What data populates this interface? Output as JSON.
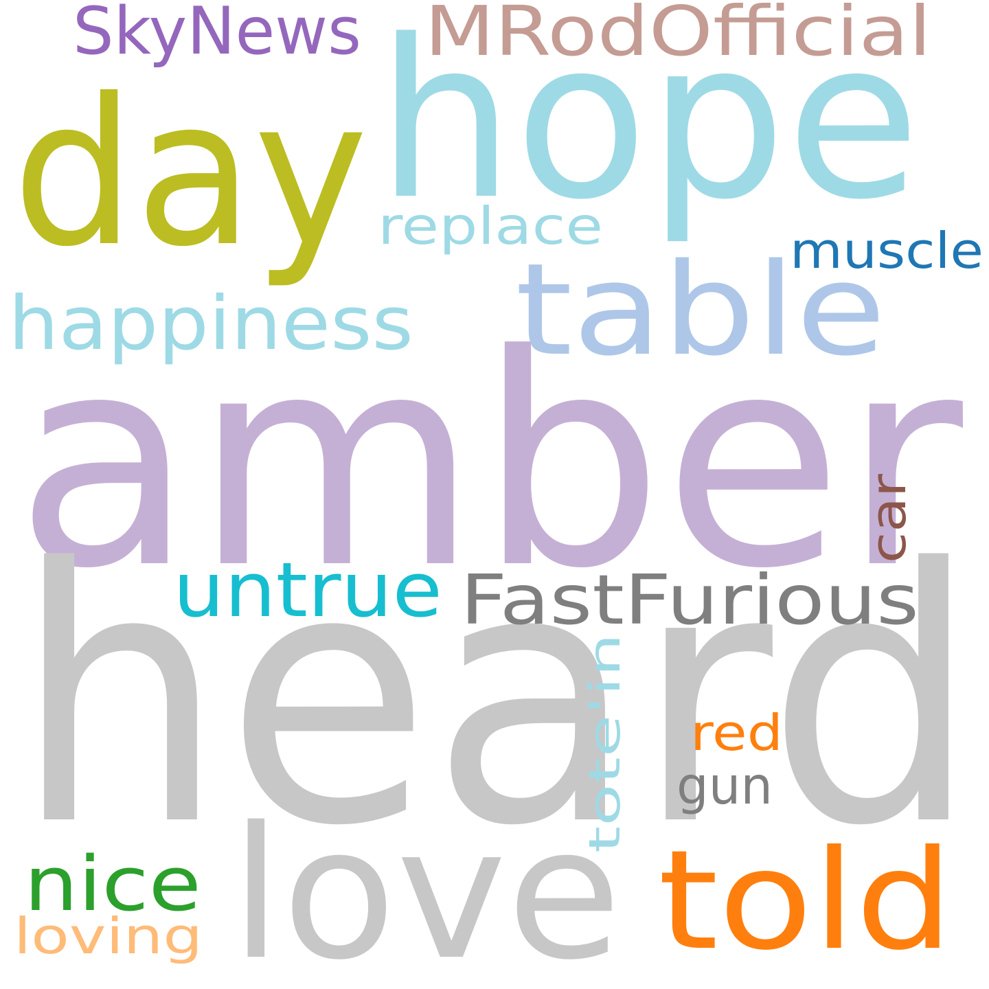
{
  "words": [
    {
      "id": "amber",
      "text": "amber",
      "color": "#c5b0d5"
    },
    {
      "id": "heard",
      "text": "heard",
      "color": "#c7c7c7"
    },
    {
      "id": "hope",
      "text": "hope",
      "color": "#9edae5"
    },
    {
      "id": "day",
      "text": "day",
      "color": "#bcbd22"
    },
    {
      "id": "table",
      "text": "table",
      "color": "#aec7e8"
    },
    {
      "id": "love",
      "text": "love",
      "color": "#c7c7c7"
    },
    {
      "id": "told",
      "text": "told",
      "color": "#ff7f0e"
    },
    {
      "id": "mrodofficial",
      "text": "MRodOfficial",
      "color": "#c49c94"
    },
    {
      "id": "skynews",
      "text": "SkyNews",
      "color": "#9467bd"
    },
    {
      "id": "happiness",
      "text": "happiness",
      "color": "#9edae5"
    },
    {
      "id": "fastfurious",
      "text": "FastFurious",
      "color": "#7f7f7f"
    },
    {
      "id": "untrue",
      "text": "untrue",
      "color": "#17becf"
    },
    {
      "id": "replace",
      "text": "replace",
      "color": "#9edae5"
    },
    {
      "id": "muscle",
      "text": "muscle",
      "color": "#1f77b4"
    },
    {
      "id": "nice",
      "text": "nice",
      "color": "#2ca02c"
    },
    {
      "id": "tote-in",
      "text": "tote'in",
      "color": "#9edae5"
    },
    {
      "id": "car",
      "text": "car",
      "color": "#8c564b"
    },
    {
      "id": "red",
      "text": "red",
      "color": "#ff7f0e"
    },
    {
      "id": "gun",
      "text": "gun",
      "color": "#7f7f7f"
    },
    {
      "id": "loving",
      "text": "loving",
      "color": "#ffbb78"
    }
  ]
}
